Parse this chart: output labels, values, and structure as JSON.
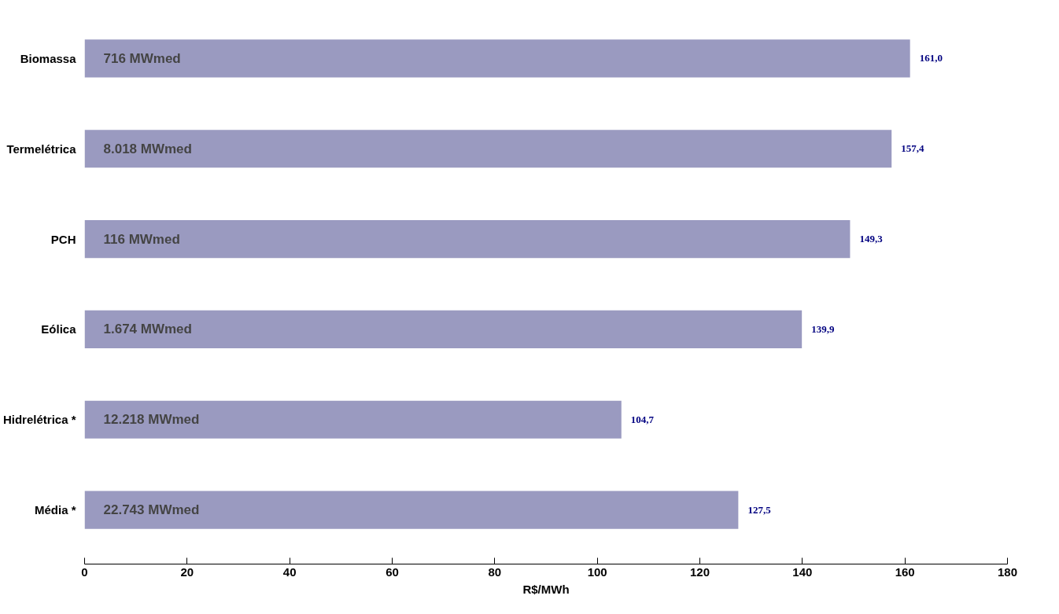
{
  "chart_data": {
    "type": "bar",
    "orientation": "horizontal",
    "xlabel": "R$/MWh",
    "categories": [
      "Biomassa",
      "Termelétrica",
      "PCH",
      "Eólica",
      "Hidrelétrica *",
      "Média *"
    ],
    "values": [
      161.0,
      157.4,
      149.3,
      139.9,
      104.7,
      127.5
    ],
    "value_labels": [
      "161,0",
      "157,4",
      "149,3",
      "139,9",
      "104,7",
      "127,5"
    ],
    "color": "#9a9ac0",
    "xlim": [
      0,
      180
    ],
    "xticks": [
      0,
      20,
      40,
      60,
      80,
      100,
      120,
      140,
      160,
      180
    ],
    "grid": false,
    "annotations": [
      "716  MWmed",
      "8.018  MWmed",
      "116  MWmed",
      "1.674  MWmed",
      "12.218  MWmed",
      "22.743  MWmed"
    ]
  }
}
